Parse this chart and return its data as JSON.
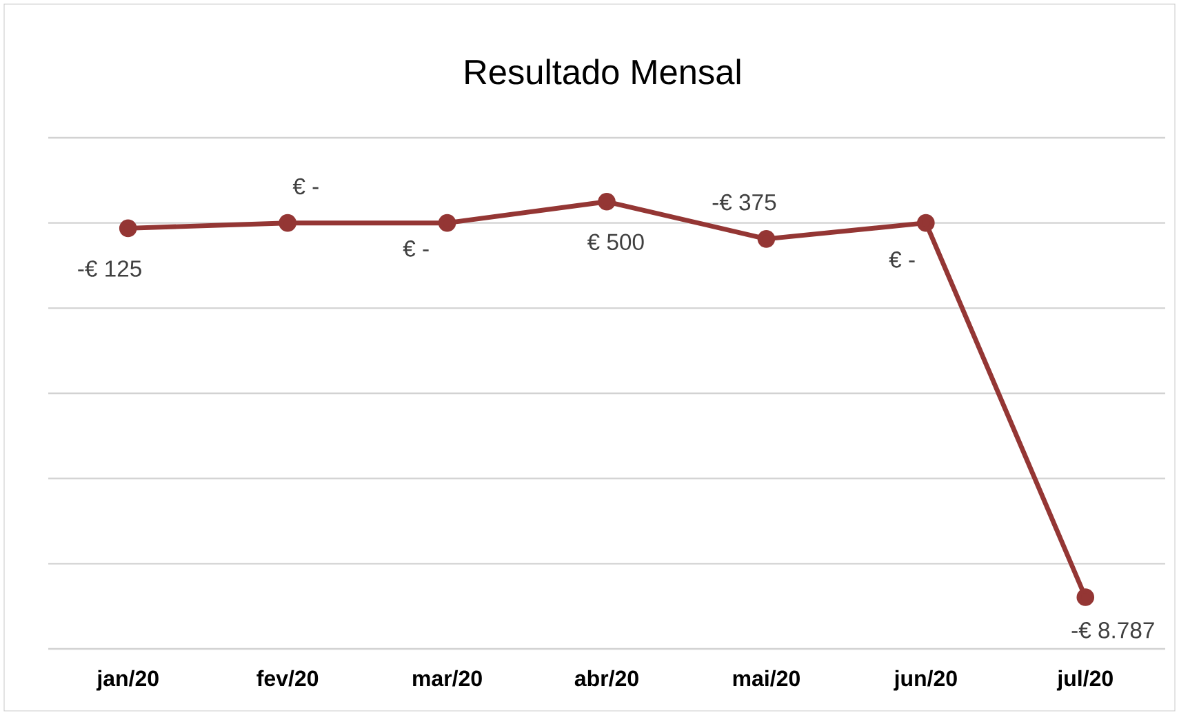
{
  "chart_data": {
    "type": "line",
    "title": "Resultado Mensal",
    "categories": [
      "jan/20",
      "fev/20",
      "mar/20",
      "abr/20",
      "mai/20",
      "jun/20",
      "jul/20"
    ],
    "series": [
      {
        "color": "#943634",
        "values": [
          -125,
          0,
          0,
          500,
          -375,
          0,
          -8787
        ],
        "value_labels": [
          "-€ 125",
          "€ -",
          "€ -",
          "€ 500",
          "-€ 375",
          "€ -",
          "-€ 8.787"
        ]
      }
    ],
    "ylim": [
      -10000,
      2000
    ],
    "yticks": [
      {
        "value": -10000,
        "label": null
      },
      {
        "value": -8000,
        "label": null
      },
      {
        "value": -6000,
        "label": null
      },
      {
        "value": -4000,
        "label": null
      },
      {
        "value": -2000,
        "label": null
      },
      {
        "value": 0,
        "label": null
      },
      {
        "value": 2000,
        "label": null
      }
    ],
    "grid": "y",
    "tick_labels": "x",
    "marker": "circle",
    "line_style": "solid"
  }
}
